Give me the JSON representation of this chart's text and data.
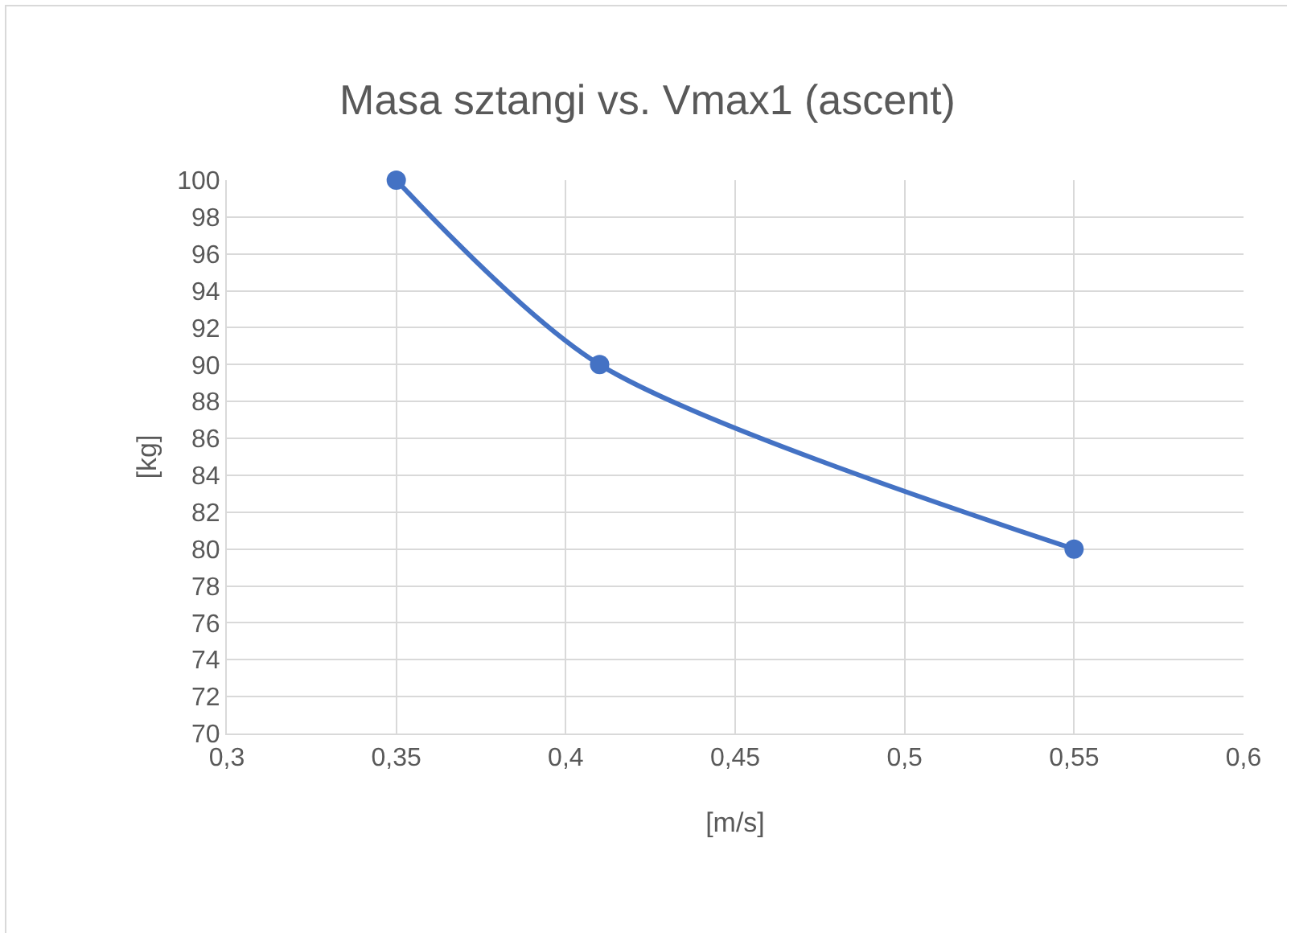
{
  "chart_data": {
    "type": "line",
    "title": "Masa sztangi vs. Vmax1 (ascent)",
    "xlabel": "[m/s]",
    "ylabel": "[kg]",
    "x": [
      0.35,
      0.41,
      0.55
    ],
    "series": [
      {
        "color": "#4472c4",
        "values": [
          100,
          90,
          80
        ]
      }
    ],
    "xlim": [
      0.3,
      0.6
    ],
    "xticks": [
      {
        "value": 0.3,
        "label": "0,3"
      },
      {
        "value": 0.35,
        "label": "0,35"
      },
      {
        "value": 0.4,
        "label": "0,4"
      },
      {
        "value": 0.45,
        "label": "0,45"
      },
      {
        "value": 0.5,
        "label": "0,5"
      },
      {
        "value": 0.55,
        "label": "0,55"
      },
      {
        "value": 0.6,
        "label": "0,6"
      }
    ],
    "ylim": [
      70,
      100
    ],
    "yticks": [
      70,
      72,
      74,
      76,
      78,
      80,
      82,
      84,
      86,
      88,
      90,
      92,
      94,
      96,
      98,
      100
    ],
    "grid": true,
    "marker": "circle",
    "line_style": "solid"
  }
}
